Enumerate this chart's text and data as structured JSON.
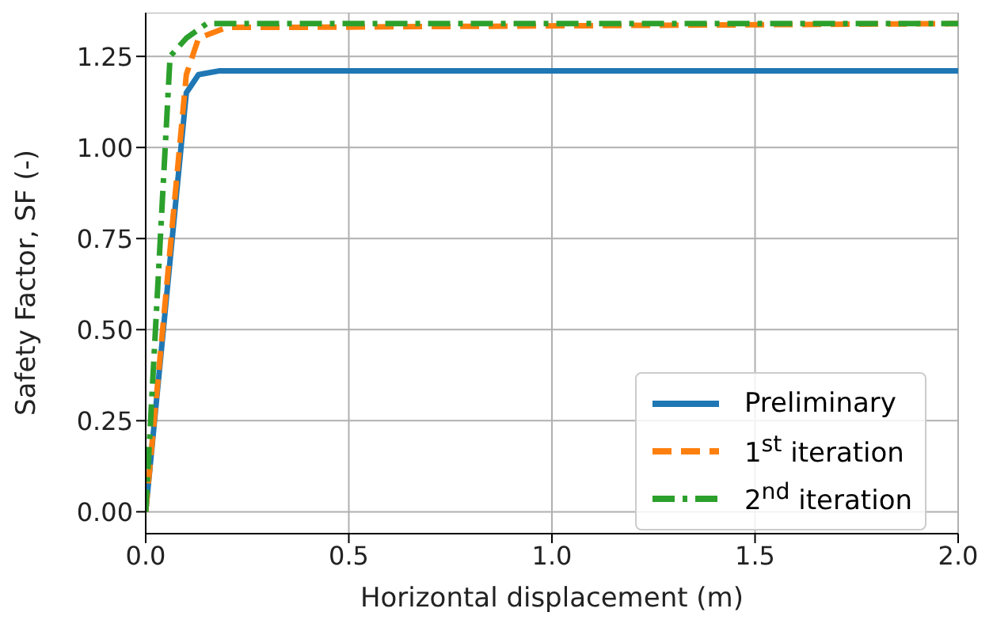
{
  "chart_data": {
    "type": "line",
    "xlabel": "Horizontal displacement (m)",
    "ylabel": "Safety Factor, SF (-)",
    "xlim": [
      0,
      2
    ],
    "xticks": [
      {
        "value": 0,
        "label": "0.0"
      },
      {
        "value": 0.5,
        "label": "0.5"
      },
      {
        "value": 1,
        "label": "1.0"
      },
      {
        "value": 1.5,
        "label": "1.5"
      },
      {
        "value": 2,
        "label": "2.0"
      }
    ],
    "ylim": [
      -0.06,
      1.37
    ],
    "yticks": [
      {
        "value": 0,
        "label": "0.00"
      },
      {
        "value": 0.25,
        "label": "0.25"
      },
      {
        "value": 0.5,
        "label": "0.50"
      },
      {
        "value": 0.75,
        "label": "0.75"
      },
      {
        "value": 1,
        "label": "1.00"
      },
      {
        "value": 1.25,
        "label": "1.25"
      }
    ],
    "grid": true,
    "legend": "bottom right",
    "marker": "none",
    "series": [
      {
        "name": "Preliminary",
        "color": "#1f77b4",
        "line_style": "solid",
        "x": [
          0,
          0.1,
          0.13,
          0.18,
          2
        ],
        "values": [
          0,
          1.15,
          1.2,
          1.21,
          1.21
        ]
      },
      {
        "name": "1$^{st}$ iteration",
        "color": "#ff7f0e",
        "line_style": "dashed",
        "x": [
          0,
          0.1,
          0.13,
          0.2,
          0.4,
          2
        ],
        "values": [
          0,
          1.2,
          1.3,
          1.33,
          1.33,
          1.34
        ]
      },
      {
        "name": "2$^{nd}$ iteration",
        "color": "#2ca02c",
        "line_style": "dashdot",
        "x": [
          0,
          0.06,
          0.1,
          0.15,
          2
        ],
        "values": [
          0,
          1.25,
          1.3,
          1.34,
          1.34
        ]
      }
    ]
  }
}
